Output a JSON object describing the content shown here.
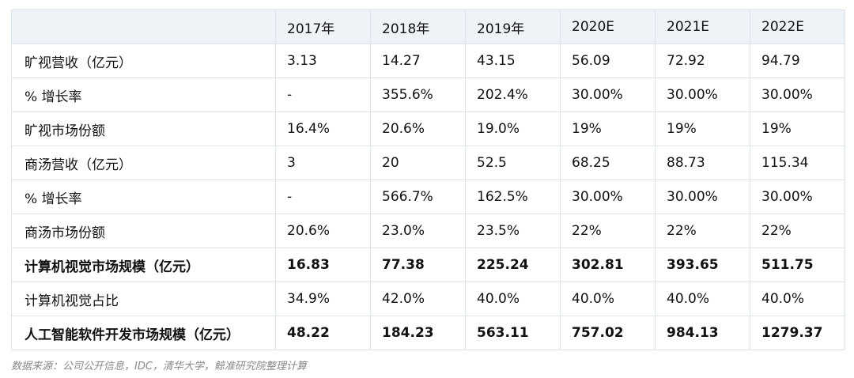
{
  "table": {
    "columns": [
      "2017年",
      "2018年",
      "2019年",
      "2020E",
      "2021E",
      "2022E"
    ],
    "rows": [
      {
        "label": "旷视营收（亿元）",
        "cells": [
          "3.13",
          "14.27",
          "43.15",
          "56.09",
          "72.92",
          "94.79"
        ],
        "bold": false
      },
      {
        "label": "% 增长率",
        "cells": [
          "-",
          "355.6%",
          "202.4%",
          "30.00%",
          "30.00%",
          "30.00%"
        ],
        "bold": false
      },
      {
        "label": "旷视市场份额",
        "cells": [
          "16.4%",
          "20.6%",
          "19.0%",
          "19%",
          "19%",
          "19%"
        ],
        "bold": false
      },
      {
        "label": "商汤营收（亿元）",
        "cells": [
          "3",
          "20",
          "52.5",
          "68.25",
          "88.73",
          "115.34"
        ],
        "bold": false
      },
      {
        "label": "% 增长率",
        "cells": [
          "-",
          "566.7%",
          "162.5%",
          "30.00%",
          "30.00%",
          "30.00%"
        ],
        "bold": false
      },
      {
        "label": "商汤市场份额",
        "cells": [
          "20.6%",
          "23.0%",
          "23.5%",
          "22%",
          "22%",
          "22%"
        ],
        "bold": false
      },
      {
        "label": "计算机视觉市场规模（亿元）",
        "cells": [
          "16.83",
          "77.38",
          "225.24",
          "302.81",
          "393.65",
          "511.75"
        ],
        "bold": true
      },
      {
        "label": "计算机视觉占比",
        "cells": [
          "34.9%",
          "42.0%",
          "40.0%",
          "40.0%",
          "40.0%",
          "40.0%"
        ],
        "bold": false
      },
      {
        "label": "人工智能软件开发市场规模（亿元）",
        "cells": [
          "48.22",
          "184.23",
          "563.11",
          "757.02",
          "984.13",
          "1279.37"
        ],
        "bold": true
      }
    ]
  },
  "source": "数据来源：公司公开信息，IDC，清华大学，鲸准研究院整理计算"
}
